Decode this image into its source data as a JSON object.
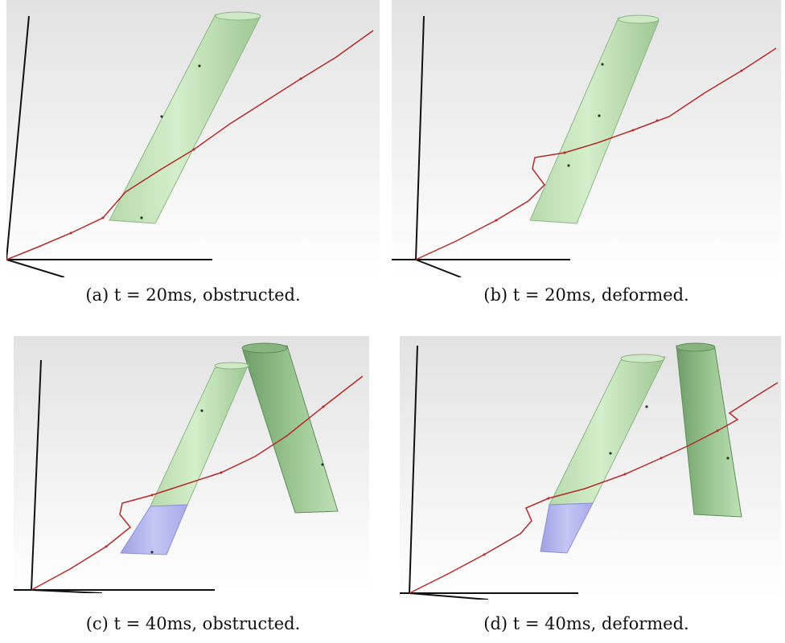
{
  "figure": {
    "panels": [
      {
        "id": "a",
        "caption": "(a) t = 20ms, obstructed."
      },
      {
        "id": "b",
        "caption": "(b) t = 20ms, deformed."
      },
      {
        "id": "c",
        "caption": "(c) t = 40ms, obstructed."
      },
      {
        "id": "d",
        "caption": "(d) t = 40ms, deformed."
      }
    ],
    "colors": {
      "background_top": "#e4e4e4",
      "background_bottom": "#ffffff",
      "cylinder_light": "#d2ecc9",
      "cylinder_mid": "#b3d8a9",
      "cylinder_dark": "#7ea978",
      "segment_violet": "#b4b6ee",
      "trajectory": "#b42a26",
      "axes": "#111111"
    }
  }
}
